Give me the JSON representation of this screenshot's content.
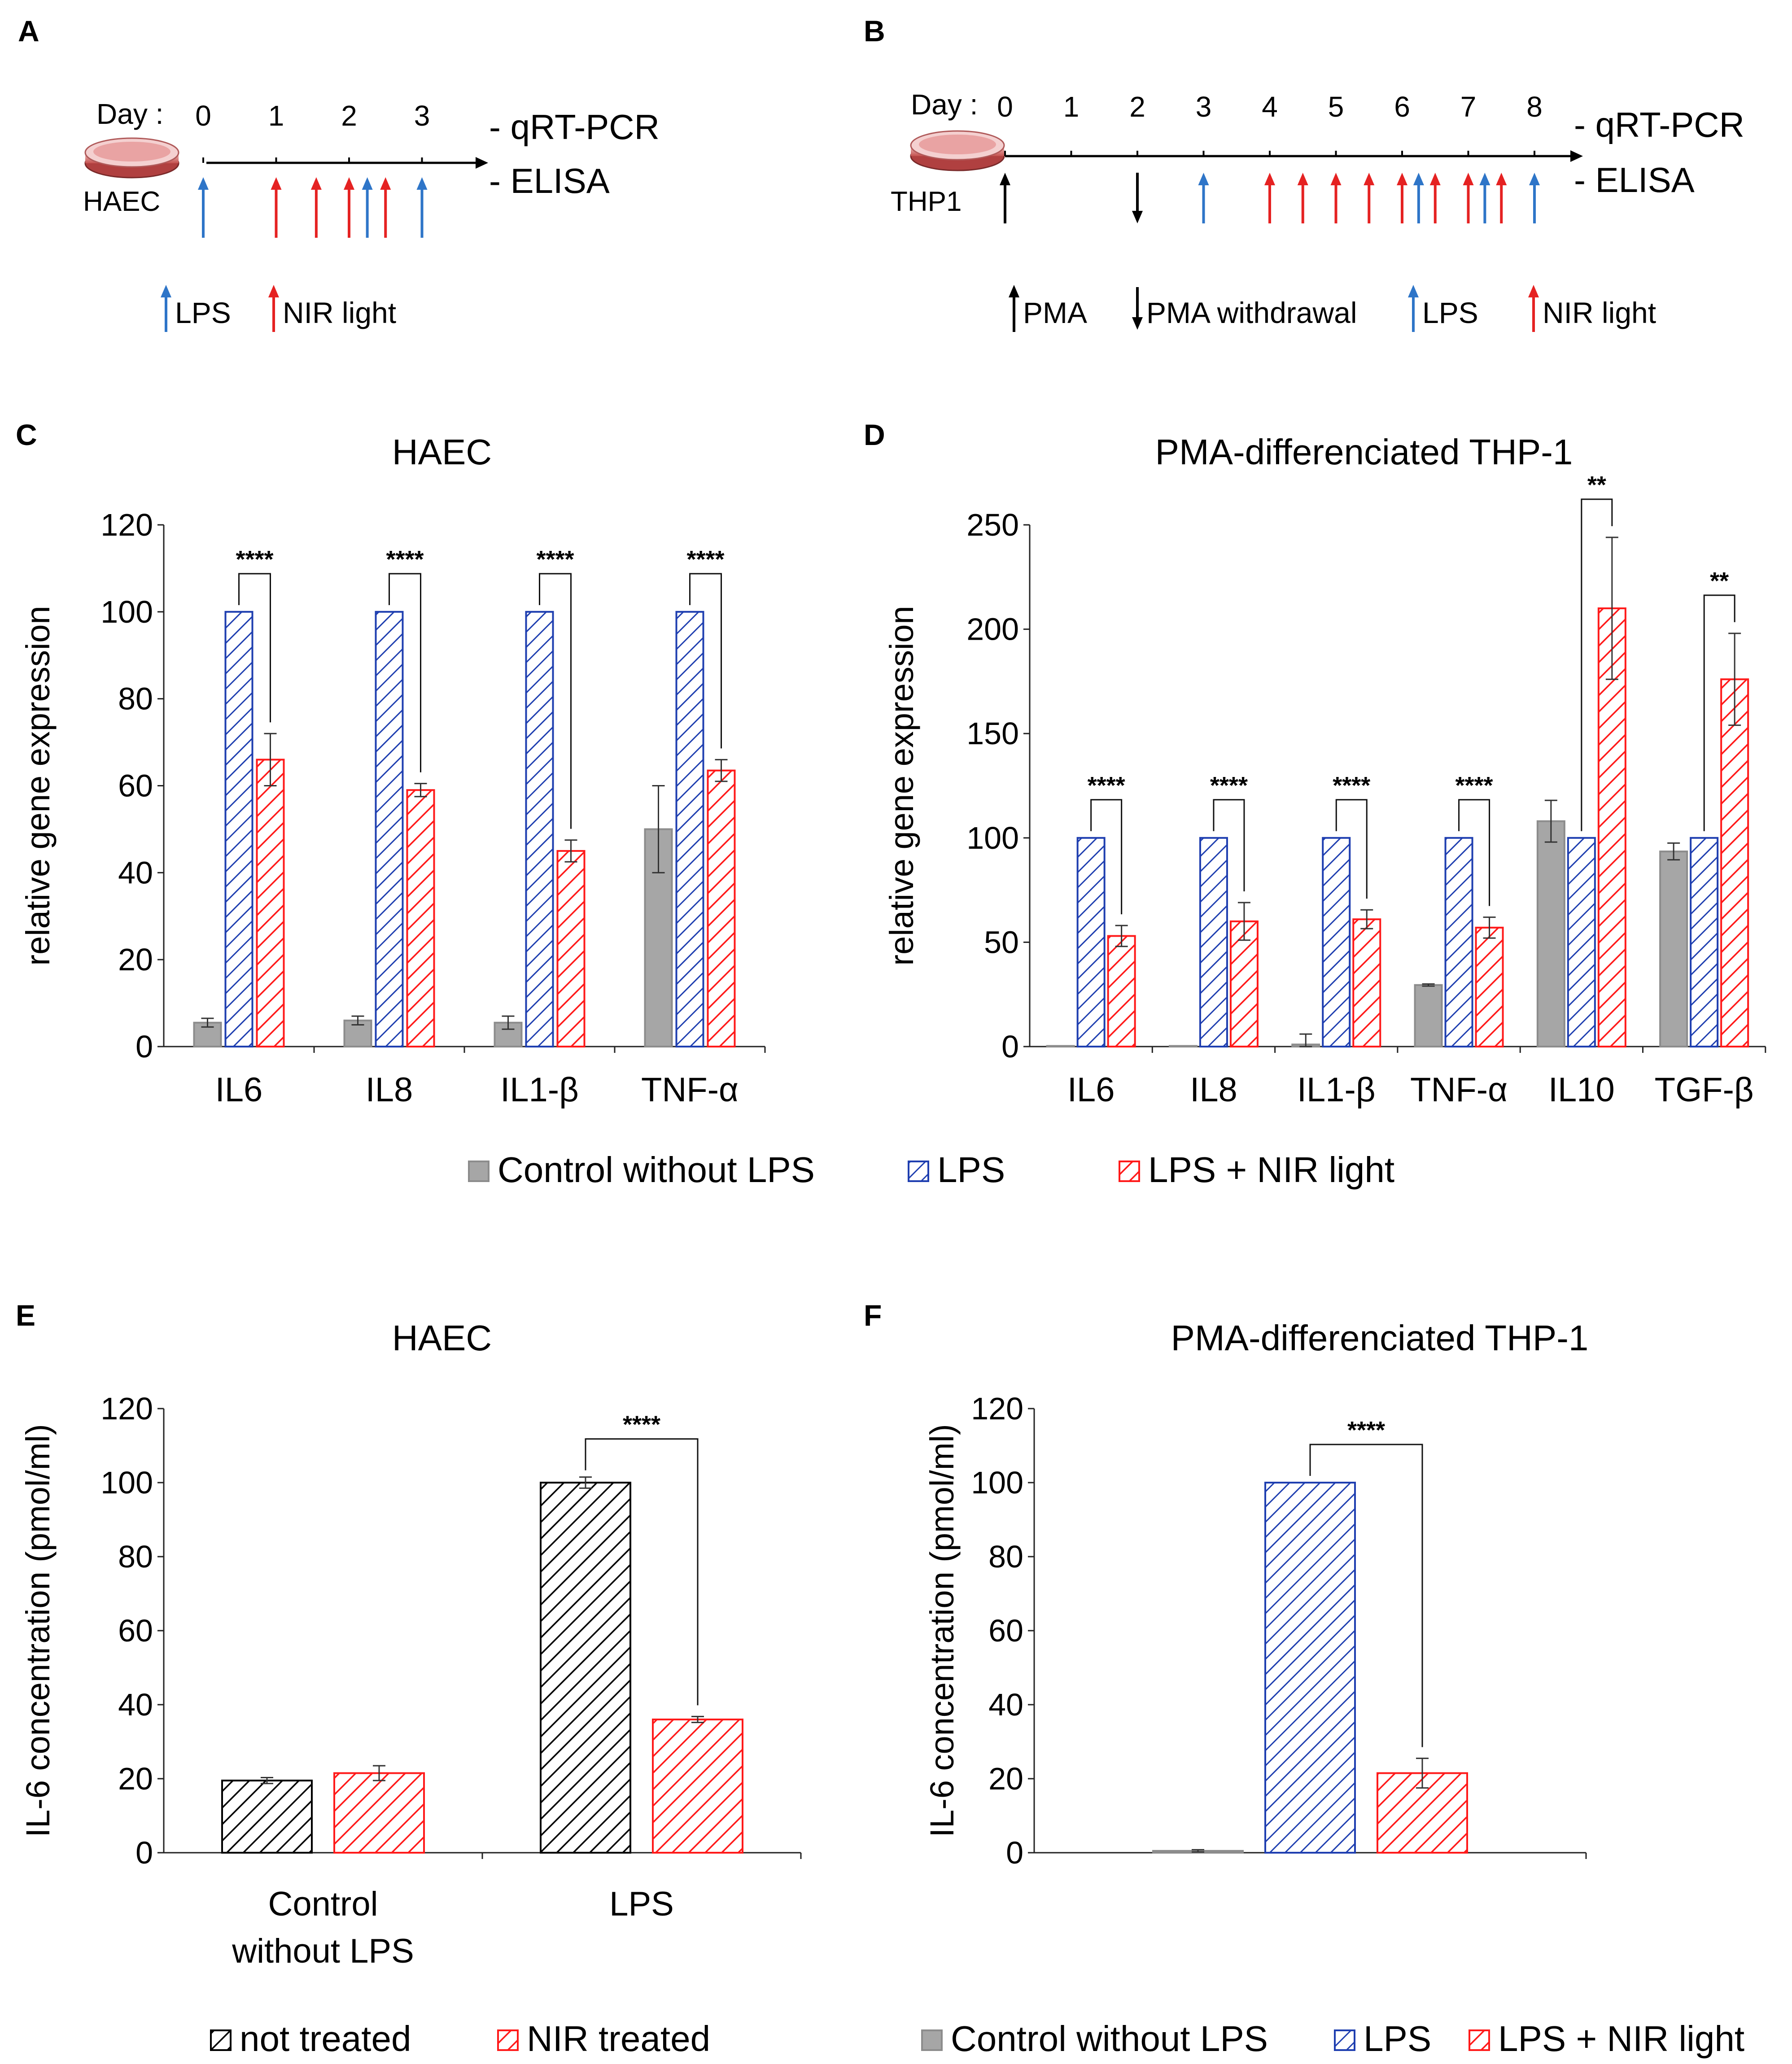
{
  "colors": {
    "gray": "#a6a6a6",
    "blue": "#1f3fb0",
    "red": "#ff1a1a",
    "black": "#000000",
    "arrow_blue": "#2e75c8",
    "arrow_red": "#e52222"
  },
  "timelines": [
    {
      "panel_label": "A",
      "day_label": "Day :",
      "ticks": [
        "0",
        "1",
        "2",
        "3"
      ],
      "cell_label": "HAEC",
      "readouts": [
        "- qRT-PCR",
        "- ELISA"
      ],
      "event_arrows": [
        {
          "day": 0,
          "kind": "LPS"
        },
        {
          "day": 1,
          "kind": "NIR"
        },
        {
          "day": 1.55,
          "kind": "NIR"
        },
        {
          "day": 2,
          "kind": "NIR"
        },
        {
          "day": 2.25,
          "kind": "LPS"
        },
        {
          "day": 2.5,
          "kind": "NIR"
        },
        {
          "day": 3,
          "kind": "LPS"
        }
      ],
      "legend": [
        {
          "kind": "LPS",
          "label": "LPS"
        },
        {
          "kind": "NIR",
          "label": "NIR light"
        }
      ]
    },
    {
      "panel_label": "B",
      "day_label": "Day :",
      "ticks": [
        "0",
        "1",
        "2",
        "3",
        "4",
        "5",
        "6",
        "7",
        "8"
      ],
      "cell_label": "THP1",
      "readouts": [
        "- qRT-PCR",
        "- ELISA"
      ],
      "event_arrows": [
        {
          "day": 0,
          "kind": "PMA"
        },
        {
          "day": 2,
          "kind": "PMA_W"
        },
        {
          "day": 3,
          "kind": "LPS"
        },
        {
          "day": 4,
          "kind": "NIR"
        },
        {
          "day": 4.5,
          "kind": "NIR"
        },
        {
          "day": 5,
          "kind": "NIR"
        },
        {
          "day": 5.5,
          "kind": "NIR"
        },
        {
          "day": 6,
          "kind": "NIR"
        },
        {
          "day": 6.25,
          "kind": "LPS"
        },
        {
          "day": 6.5,
          "kind": "NIR"
        },
        {
          "day": 7,
          "kind": "NIR"
        },
        {
          "day": 7.25,
          "kind": "LPS"
        },
        {
          "day": 7.5,
          "kind": "NIR"
        },
        {
          "day": 8,
          "kind": "LPS"
        }
      ],
      "legend": [
        {
          "kind": "PMA",
          "label": "PMA"
        },
        {
          "kind": "PMA_W",
          "label": "PMA withdrawal"
        },
        {
          "kind": "LPS",
          "label": "LPS"
        },
        {
          "kind": "NIR",
          "label": "NIR light"
        }
      ]
    }
  ],
  "legends": {
    "cd": [
      {
        "style": "gray",
        "label": "Control without LPS"
      },
      {
        "style": "blue",
        "label": "LPS"
      },
      {
        "style": "red",
        "label": "LPS + NIR light"
      }
    ],
    "e": [
      {
        "style": "black",
        "label": "not treated"
      },
      {
        "style": "red",
        "label": "NIR treated"
      }
    ],
    "f": [
      {
        "style": "gray",
        "label": "Control without LPS"
      },
      {
        "style": "blue",
        "label": "LPS"
      },
      {
        "style": "red",
        "label": "LPS + NIR light"
      }
    ]
  },
  "chart_data": [
    {
      "panel_label": "C",
      "type": "bar",
      "title": "HAEC",
      "xlabel": "",
      "ylabel": "relative gene expression",
      "ylim": [
        0,
        120
      ],
      "yticks": [
        0,
        20,
        40,
        60,
        80,
        100,
        120
      ],
      "categories": [
        "IL6",
        "IL8",
        "IL1-β",
        "TNF-α"
      ],
      "series": [
        {
          "name": "Control without LPS",
          "style": "gray",
          "values": [
            5.5,
            6,
            5.5,
            50
          ],
          "errors": [
            1,
            1,
            1.5,
            10
          ]
        },
        {
          "name": "LPS",
          "style": "blue",
          "values": [
            100,
            100,
            100,
            100
          ],
          "errors": [
            0,
            0,
            0,
            0
          ]
        },
        {
          "name": "LPS + NIR light",
          "style": "red",
          "values": [
            66,
            59,
            45,
            63.5
          ],
          "errors": [
            6,
            1.5,
            2.5,
            2.5
          ]
        }
      ],
      "significance": [
        {
          "category": 0,
          "label": "****"
        },
        {
          "category": 1,
          "label": "****"
        },
        {
          "category": 2,
          "label": "****"
        },
        {
          "category": 3,
          "label": "****"
        }
      ]
    },
    {
      "panel_label": "D",
      "type": "bar",
      "title": "PMA-differenciated THP-1",
      "xlabel": "",
      "ylabel": "relative gene expression",
      "ylim": [
        0,
        250
      ],
      "yticks": [
        0,
        50,
        100,
        150,
        200,
        250
      ],
      "categories": [
        "IL6",
        "IL8",
        "IL1-β",
        "TNF-α",
        "IL10",
        "TGF-β"
      ],
      "series": [
        {
          "name": "Control without LPS",
          "style": "gray",
          "values": [
            0.3,
            0.3,
            1,
            29.5,
            108,
            93.5
          ],
          "errors": [
            0,
            0,
            5,
            0.5,
            10,
            4
          ]
        },
        {
          "name": "LPS",
          "style": "blue",
          "values": [
            100,
            100,
            100,
            100,
            100,
            100
          ],
          "errors": [
            0,
            0,
            0,
            0,
            0,
            0
          ]
        },
        {
          "name": "LPS + NIR light",
          "style": "red",
          "values": [
            53,
            60,
            61,
            57,
            210,
            176
          ],
          "errors": [
            5,
            9,
            4.5,
            5,
            34,
            22
          ]
        }
      ],
      "significance": [
        {
          "category": 0,
          "label": "****"
        },
        {
          "category": 1,
          "label": "****"
        },
        {
          "category": 2,
          "label": "****"
        },
        {
          "category": 3,
          "label": "****"
        },
        {
          "category": 4,
          "label": "**"
        },
        {
          "category": 5,
          "label": "**"
        }
      ]
    },
    {
      "panel_label": "E",
      "type": "bar",
      "title": "HAEC",
      "xlabel": "",
      "ylabel": "IL-6 concentration (pmol/ml)",
      "ylim": [
        0,
        120
      ],
      "yticks": [
        0,
        20,
        40,
        60,
        80,
        100,
        120
      ],
      "categories": [
        "Control\nwithout LPS",
        "LPS"
      ],
      "series": [
        {
          "name": "not treated",
          "style": "black",
          "values": [
            19.5,
            100
          ],
          "errors": [
            0.8,
            1.5
          ]
        },
        {
          "name": "NIR treated",
          "style": "red",
          "values": [
            21.5,
            36
          ],
          "errors": [
            2,
            0.8
          ]
        }
      ],
      "significance": [
        {
          "category": 1,
          "label": "****"
        }
      ]
    },
    {
      "panel_label": "F",
      "type": "bar",
      "title": "PMA-differenciated THP-1",
      "xlabel": "",
      "ylabel": "IL-6 concentration (pmol/ml)",
      "ylim": [
        0,
        120
      ],
      "yticks": [
        0,
        20,
        40,
        60,
        80,
        100,
        120
      ],
      "categories": [
        ""
      ],
      "series": [
        {
          "name": "Control without LPS",
          "style": "gray",
          "values": [
            0.5
          ],
          "errors": [
            0.3
          ]
        },
        {
          "name": "LPS",
          "style": "blue",
          "values": [
            100
          ],
          "errors": [
            0
          ]
        },
        {
          "name": "LPS + NIR light",
          "style": "red",
          "values": [
            21.5
          ],
          "errors": [
            4
          ]
        }
      ],
      "significance": [
        {
          "category": 0,
          "label": "****"
        }
      ]
    }
  ]
}
